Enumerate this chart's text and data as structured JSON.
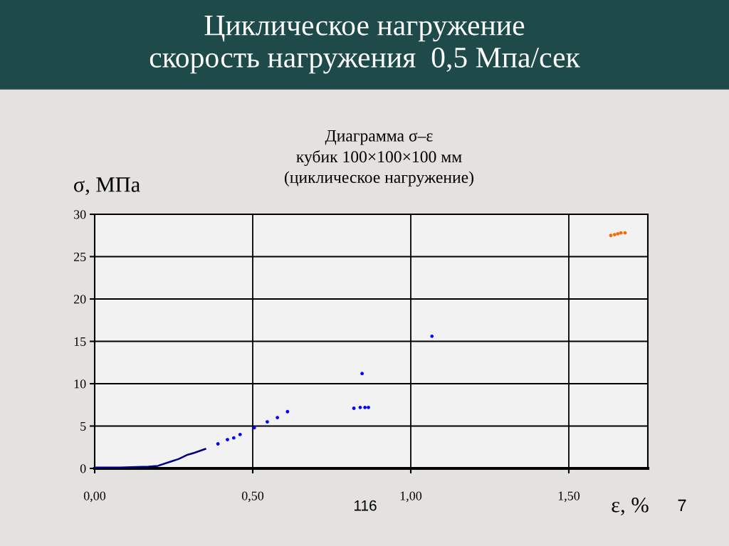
{
  "chart_data": {
    "type": "scatter",
    "title": "Циклическое нагружение\nскорость нагружения  0,5 Мпа/сек",
    "subtitle": "Диаграмма σ–ε\nкубик 100×100×100 мм\n(циклическое нагружение)",
    "xlabel": "ε, %",
    "ylabel": "σ, МПа",
    "annotations": [
      "116",
      "7"
    ],
    "series": [
      {
        "type": "line",
        "color": "#000080",
        "marker": "none",
        "x": [
          0,
          0.08,
          0.17,
          0.2,
          0.24,
          0.265,
          0.293,
          0.316,
          0.35
        ],
        "values": [
          0.1,
          0.1,
          0.2,
          0.3,
          0.8,
          1.1,
          1.6,
          1.85,
          2.3
        ]
      },
      {
        "color": "#0000ff",
        "marker": "circle",
        "x": [
          0.39,
          0.42,
          0.44,
          0.46,
          0.505,
          0.546,
          0.578,
          0.61,
          0.82,
          0.84,
          0.855,
          0.866,
          0.846,
          1.067
        ],
        "values": [
          2.9,
          3.4,
          3.6,
          4.0,
          4.8,
          5.5,
          6.0,
          6.7,
          7.1,
          7.2,
          7.2,
          7.2,
          11.2,
          15.6
        ]
      },
      {
        "color": "#ff6600",
        "marker": "circle",
        "x": [
          1.633,
          1.645,
          1.655,
          1.665,
          1.678
        ],
        "values": [
          27.5,
          27.6,
          27.7,
          27.8,
          27.8
        ]
      }
    ],
    "xlim": [
      0,
      1.75
    ],
    "ylim": [
      0,
      30
    ],
    "xticks": [
      {
        "value": 0,
        "label": "0,00"
      },
      {
        "value": 0.5,
        "label": "0,50"
      },
      {
        "value": 1.0,
        "label": "1,00"
      },
      {
        "value": 1.5,
        "label": "1,50"
      }
    ],
    "yticks": [
      0,
      5,
      10,
      15,
      20,
      25,
      30
    ],
    "grid": true,
    "legend": false
  }
}
